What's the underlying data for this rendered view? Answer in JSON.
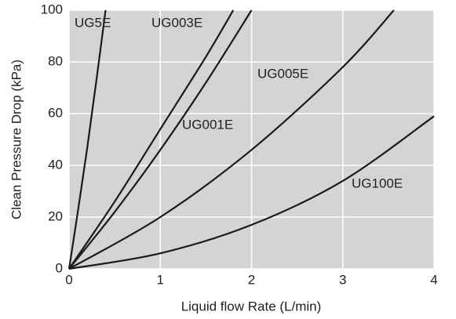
{
  "chart_data": {
    "type": "line",
    "x_label": "Liquid flow Rate (L/min)",
    "y_label": "Clean Pressure Drop (kPa)",
    "xlim": [
      0,
      4
    ],
    "xticks": [
      0,
      1,
      2,
      3,
      4
    ],
    "ylim": [
      0,
      100
    ],
    "yticks": [
      0,
      20,
      40,
      60,
      80,
      100
    ],
    "grid": true,
    "background": "#d4d4d4",
    "grid_color": "#ffffff",
    "series": [
      {
        "name": "UG5E",
        "color": "#1a1a1a",
        "x": [
          0,
          0.1,
          0.2,
          0.3,
          0.4
        ],
        "values": [
          0,
          23,
          47,
          73,
          100
        ]
      },
      {
        "name": "UG003E",
        "color": "#1a1a1a",
        "x": [
          0,
          0.5,
          1,
          1.5,
          1.8
        ],
        "values": [
          0,
          26,
          54,
          82,
          100
        ]
      },
      {
        "name": "UG001E",
        "color": "#1a1a1a",
        "x": [
          0,
          0.5,
          1,
          1.5,
          2
        ],
        "values": [
          0,
          22,
          46,
          72,
          100
        ]
      },
      {
        "name": "UG005E",
        "color": "#1a1a1a",
        "x": [
          0,
          1,
          2,
          3,
          3.56
        ],
        "values": [
          0,
          20,
          46,
          78,
          100
        ]
      },
      {
        "name": "UG100E",
        "color": "#1a1a1a",
        "x": [
          0,
          1,
          2,
          3,
          4
        ],
        "values": [
          0,
          6,
          17,
          34,
          59
        ]
      }
    ]
  }
}
